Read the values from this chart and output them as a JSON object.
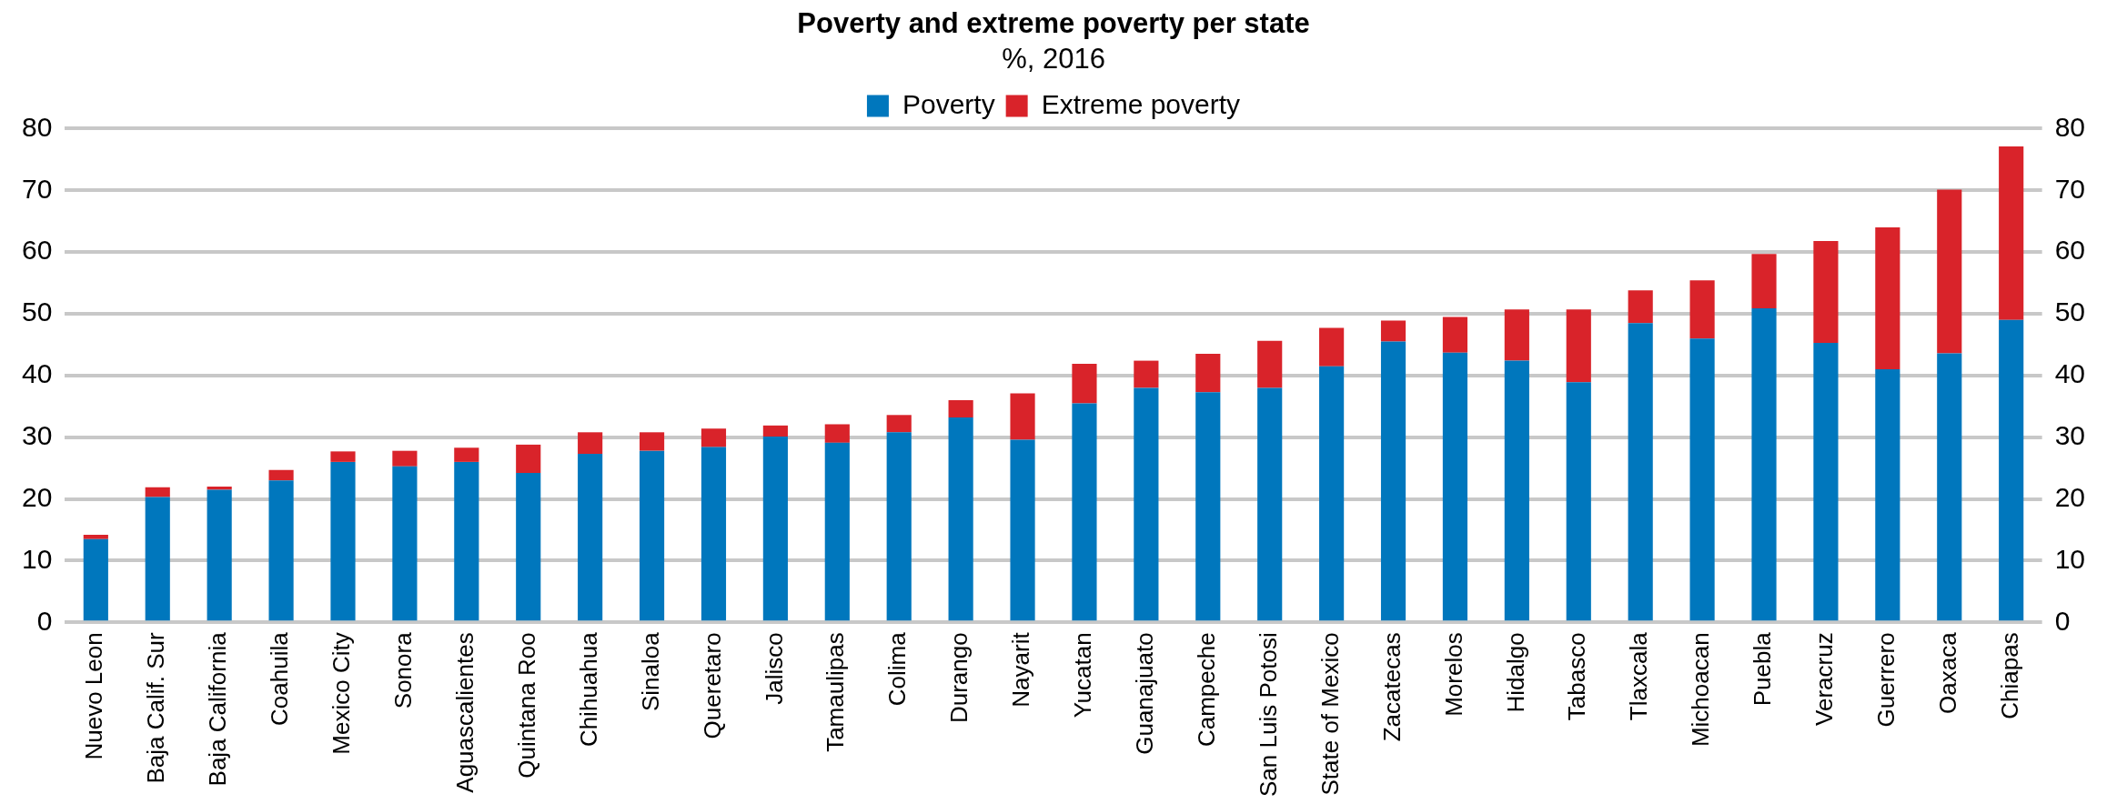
{
  "chart_data": {
    "type": "bar",
    "title": "Poverty and extreme poverty per state",
    "subtitle": "%, 2016",
    "stacked": true,
    "categories": [
      "Nuevo Leon",
      "Baja Calif. Sur",
      "Baja California",
      "Coahuila",
      "Mexico City",
      "Sonora",
      "Aguascalientes",
      "Quintana Roo",
      "Chihuahua",
      "Sinaloa",
      "Queretaro",
      "Jalisco",
      "Tamaulipas",
      "Colima",
      "Durango",
      "Nayarit",
      "Yucatan",
      "Guanajuato",
      "Campeche",
      "San Luis Potosi",
      "State of Mexico",
      "Zacatecas",
      "Morelos",
      "Hidalgo",
      "Tabasco",
      "Tlaxcala",
      "Michoacan",
      "Puebla",
      "Veracruz",
      "Guerrero",
      "Oaxaca",
      "Chiapas"
    ],
    "series": [
      {
        "name": "Poverty",
        "color": "#0077bd",
        "values": [
          13.5,
          20.3,
          21.5,
          23,
          26,
          25.3,
          26,
          24.2,
          27.3,
          27.8,
          28.4,
          30.1,
          29.1,
          30.8,
          33.2,
          29.6,
          35.5,
          38,
          37.3,
          38,
          41.5,
          45.5,
          43.7,
          42.4,
          38.9,
          48.5,
          46,
          50.9,
          45.3,
          41,
          43.6,
          49
        ]
      },
      {
        "name": "Extreme poverty",
        "color": "#d9232a",
        "values": [
          0.7,
          1.6,
          0.5,
          1.7,
          1.7,
          2.5,
          2.3,
          4.6,
          3.5,
          3,
          3,
          1.8,
          3,
          2.8,
          2.8,
          7.5,
          6.4,
          4.4,
          6.2,
          7.6,
          6.2,
          3.4,
          5.8,
          8.3,
          11.8,
          5.3,
          9.4,
          8.8,
          16.5,
          23,
          26.5,
          28.1
        ]
      }
    ],
    "ylim": [
      0,
      80
    ],
    "yticks": [
      0,
      10,
      20,
      30,
      40,
      50,
      60,
      70,
      80
    ],
    "y2lim": [
      0,
      80
    ],
    "y2ticks": [
      0,
      10,
      20,
      30,
      40,
      50,
      60,
      70,
      80
    ],
    "grid": "y",
    "legend": "top"
  }
}
